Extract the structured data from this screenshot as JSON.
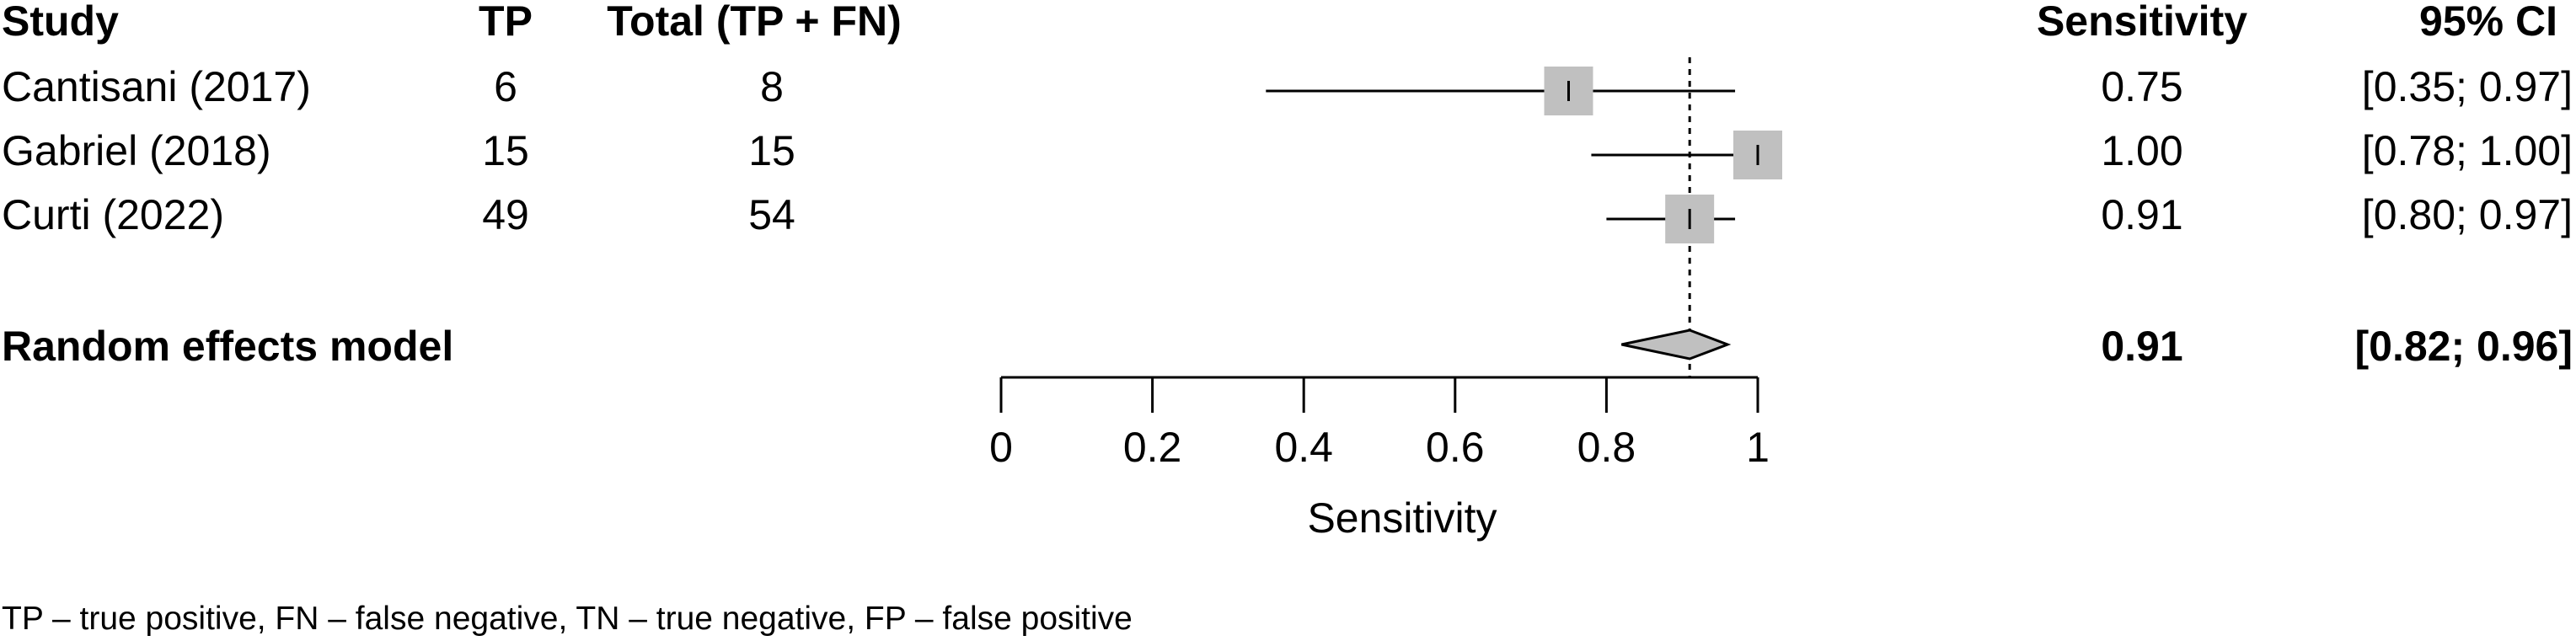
{
  "headers": {
    "study": "Study",
    "tp": "TP",
    "total": "Total (TP + FN)",
    "sensitivity": "Sensitivity",
    "ci": "95% CI"
  },
  "footnote": "TP – true positive, FN – false negative, TN – true negative, FP – false positive",
  "chart_data": {
    "type": "forest",
    "xlabel": "Sensitivity",
    "xlim": [
      0,
      1
    ],
    "ticks": [
      0,
      0.2,
      0.4,
      0.6,
      0.8,
      1
    ],
    "tick_labels": [
      "0",
      "0.2",
      "0.4",
      "0.6",
      "0.8",
      "1"
    ],
    "reference_line": 0.91,
    "studies": [
      {
        "study": "Cantisani (2017)",
        "tp": "6",
        "total": "8",
        "sensitivity": 0.75,
        "ci_low": 0.35,
        "ci_high": 0.97,
        "sens_label": "0.75",
        "ci_label": "[0.35; 0.97]"
      },
      {
        "study": "Gabriel (2018)",
        "tp": "15",
        "total": "15",
        "sensitivity": 1.0,
        "ci_low": 0.78,
        "ci_high": 1.0,
        "sens_label": "1.00",
        "ci_label": "[0.78; 1.00]"
      },
      {
        "study": "Curti (2022)",
        "tp": "49",
        "total": "54",
        "sensitivity": 0.91,
        "ci_low": 0.8,
        "ci_high": 0.97,
        "sens_label": "0.91",
        "ci_label": "[0.80; 0.97]"
      }
    ],
    "pooled": {
      "label": "Random effects model",
      "sensitivity": 0.91,
      "ci_low": 0.82,
      "ci_high": 0.96,
      "sens_label": "0.91",
      "ci_label": "[0.82; 0.96]"
    },
    "colors": {
      "marker": "#c0c0c0",
      "diamond": "#c0c0c0",
      "line": "#000000"
    }
  }
}
